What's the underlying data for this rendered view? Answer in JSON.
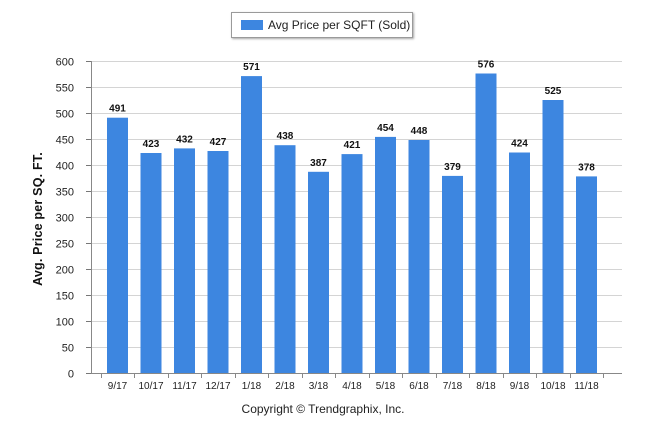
{
  "chart_data": {
    "type": "bar",
    "legend": "Avg Price per SQFT (Sold)",
    "ylabel": "Avg. Price per SQ. FT.",
    "xlabel": "",
    "categories": [
      "9/17",
      "10/17",
      "11/17",
      "12/17",
      "1/18",
      "2/18",
      "3/18",
      "4/18",
      "5/18",
      "6/18",
      "7/18",
      "8/18",
      "9/18",
      "10/18",
      "11/18"
    ],
    "series": [
      {
        "name": "Avg Price per SQFT (Sold)",
        "values": [
          491,
          423,
          432,
          427,
          571,
          438,
          387,
          421,
          454,
          448,
          379,
          576,
          424,
          525,
          378
        ]
      }
    ],
    "ylim": [
      0,
      600
    ],
    "yticks": [
      0,
      50,
      100,
      150,
      200,
      250,
      300,
      350,
      400,
      450,
      500,
      550,
      600
    ],
    "grid": true,
    "legend_position": "top-center",
    "bar_color": "#3d86e0"
  },
  "footer": {
    "copyright": "Copyright © Trendgraphix, Inc."
  }
}
